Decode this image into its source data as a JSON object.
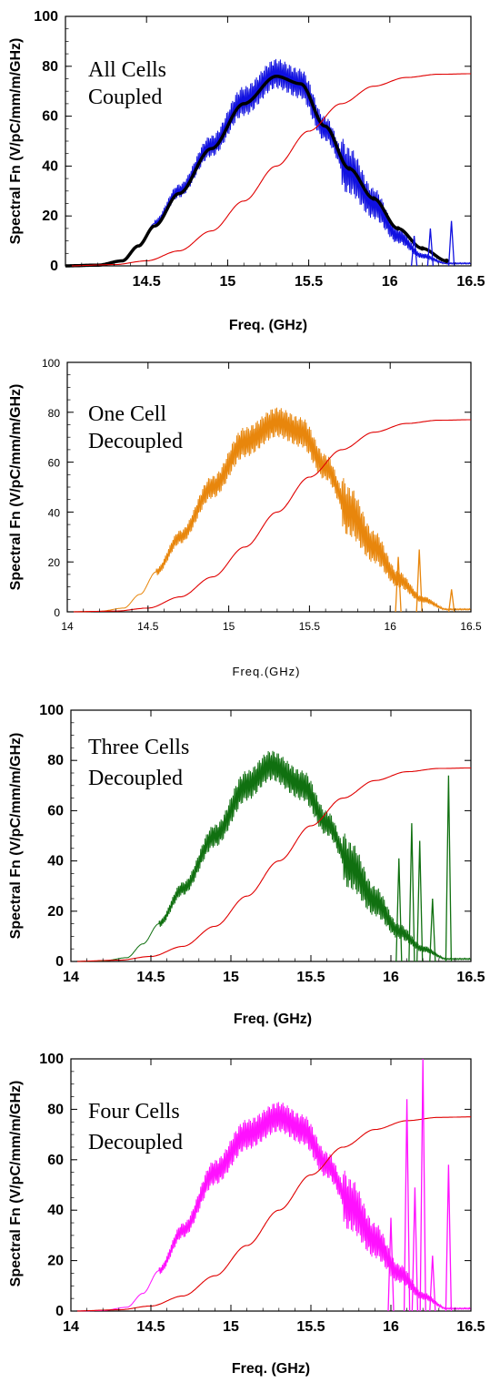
{
  "charts": [
    {
      "type": "line",
      "annotation": [
        "All Cells",
        "Coupled"
      ],
      "xlabel": "Freq. (GHz)",
      "ylabel": "Spectral Fn (V/pC/mm/m/GHz)",
      "xlim": [
        14.0,
        16.5
      ],
      "ylim": [
        0,
        100
      ],
      "xticks": [
        "14.5",
        "15",
        "15.5",
        "16",
        "16.5"
      ],
      "yticks": [
        "0",
        "20",
        "40",
        "60",
        "80",
        "100"
      ],
      "colors": {
        "spectrum": "#1010e0",
        "smooth": "#000000",
        "cumulative": "#e00000"
      },
      "grid": false,
      "series": [
        {
          "role": "spectrum",
          "x": [
            14.0,
            14.2,
            14.35,
            14.45,
            14.55,
            14.7,
            14.9,
            15.1,
            15.3,
            15.45,
            15.6,
            15.75,
            15.9,
            16.05,
            16.2,
            16.35
          ],
          "y": [
            0,
            0.3,
            2,
            8,
            17,
            30,
            48,
            66,
            77,
            73,
            55,
            38,
            25,
            12,
            4,
            1
          ]
        },
        {
          "role": "smooth",
          "x": [
            14.0,
            14.2,
            14.35,
            14.45,
            14.55,
            14.7,
            14.9,
            15.1,
            15.3,
            15.45,
            15.6,
            15.75,
            15.9,
            16.05,
            16.2,
            16.35
          ],
          "y": [
            0,
            0.3,
            2,
            8,
            16,
            29,
            47,
            65,
            76,
            73,
            56,
            39,
            27,
            15,
            7,
            2
          ]
        },
        {
          "role": "cumulative",
          "x": [
            14.0,
            14.3,
            14.5,
            14.7,
            14.9,
            15.1,
            15.3,
            15.5,
            15.7,
            15.9,
            16.1,
            16.3,
            16.5
          ],
          "y": [
            0,
            0.5,
            2,
            6,
            14,
            26,
            40,
            54,
            65,
            72,
            75.5,
            76.8,
            77
          ]
        }
      ],
      "spikes": [
        {
          "x": 16.38,
          "y": 18
        },
        {
          "x": 16.25,
          "y": 15
        },
        {
          "x": 16.15,
          "y": 12
        }
      ]
    },
    {
      "type": "line",
      "annotation": [
        "One Cell",
        "Decoupled"
      ],
      "xlabel": "Freq.(GHz)",
      "ylabel": "Spectral Fn (V/pC/mm/m/GHz)",
      "xlim": [
        14.0,
        16.5
      ],
      "ylim": [
        0,
        100
      ],
      "xticks": [
        "14",
        "14.5",
        "15",
        "15.5",
        "16",
        "16.5"
      ],
      "yticks": [
        "0",
        "20",
        "40",
        "60",
        "80",
        "100"
      ],
      "colors": {
        "spectrum": "#e8860c",
        "cumulative": "#e00000"
      },
      "grid": false,
      "series": [
        {
          "role": "spectrum",
          "x": [
            14.0,
            14.2,
            14.35,
            14.45,
            14.55,
            14.7,
            14.9,
            15.1,
            15.3,
            15.45,
            15.6,
            15.75,
            15.9,
            16.05,
            16.2,
            16.35
          ],
          "y": [
            0,
            0.2,
            1.5,
            7,
            16,
            30,
            50,
            68,
            76,
            72,
            58,
            40,
            26,
            13,
            5,
            1
          ]
        },
        {
          "role": "cumulative",
          "x": [
            14.0,
            14.3,
            14.5,
            14.7,
            14.9,
            15.1,
            15.3,
            15.5,
            15.7,
            15.9,
            16.1,
            16.3,
            16.5
          ],
          "y": [
            0,
            0.3,
            1.5,
            6,
            14,
            26,
            40,
            54,
            65,
            72,
            75.5,
            76.8,
            77
          ]
        }
      ],
      "spikes": [
        {
          "x": 16.38,
          "y": 9
        },
        {
          "x": 16.18,
          "y": 25
        },
        {
          "x": 16.05,
          "y": 22
        }
      ]
    },
    {
      "type": "line",
      "annotation": [
        "Three Cells",
        "Decoupled"
      ],
      "xlabel": "Freq. (GHz)",
      "ylabel": "Spectral Fn (V/pC/mm/m/GHz)",
      "xlim": [
        14.0,
        16.5
      ],
      "ylim": [
        0,
        100
      ],
      "xticks": [
        "14",
        "14.5",
        "15",
        "15.5",
        "16",
        "16.5"
      ],
      "yticks": [
        "0",
        "20",
        "40",
        "60",
        "80",
        "100"
      ],
      "colors": {
        "spectrum": "#107010",
        "cumulative": "#e00000"
      },
      "grid": false,
      "series": [
        {
          "role": "spectrum",
          "x": [
            14.0,
            14.2,
            14.35,
            14.45,
            14.55,
            14.7,
            14.9,
            15.1,
            15.25,
            15.45,
            15.6,
            15.75,
            15.9,
            16.05,
            16.2,
            16.35
          ],
          "y": [
            0,
            0.2,
            1.5,
            7,
            15,
            29,
            50,
            70,
            78,
            70,
            55,
            38,
            24,
            12,
            5,
            1
          ]
        },
        {
          "role": "cumulative",
          "x": [
            14.0,
            14.3,
            14.5,
            14.7,
            14.9,
            15.1,
            15.3,
            15.5,
            15.7,
            15.9,
            16.1,
            16.3,
            16.5
          ],
          "y": [
            0,
            0.5,
            2,
            6,
            14,
            26,
            40,
            54,
            65,
            72,
            75.5,
            76.8,
            77
          ]
        }
      ],
      "spikes": [
        {
          "x": 16.36,
          "y": 74
        },
        {
          "x": 16.26,
          "y": 25
        },
        {
          "x": 16.18,
          "y": 48
        },
        {
          "x": 16.13,
          "y": 55
        },
        {
          "x": 16.05,
          "y": 41
        }
      ]
    },
    {
      "type": "line",
      "annotation": [
        "Four Cells",
        "Decoupled"
      ],
      "xlabel": "Freq. (GHz)",
      "ylabel": "Spectral Fn (V/pC/mm/m/GHz)",
      "xlim": [
        14.0,
        16.5
      ],
      "ylim": [
        0,
        100
      ],
      "xticks": [
        "14",
        "14.5",
        "15",
        "15.5",
        "16",
        "16.5"
      ],
      "yticks": [
        "0",
        "20",
        "40",
        "60",
        "80",
        "100"
      ],
      "colors": {
        "spectrum": "#ff10ff",
        "cumulative": "#e00000"
      },
      "grid": false,
      "series": [
        {
          "role": "spectrum",
          "x": [
            14.0,
            14.2,
            14.35,
            14.45,
            14.55,
            14.7,
            14.9,
            15.1,
            15.3,
            15.45,
            15.6,
            15.75,
            15.9,
            16.05,
            16.2,
            16.35
          ],
          "y": [
            0,
            0.2,
            1.5,
            7,
            16,
            32,
            55,
            70,
            77,
            72,
            58,
            42,
            28,
            15,
            6,
            1
          ]
        },
        {
          "role": "cumulative",
          "x": [
            14.0,
            14.3,
            14.5,
            14.7,
            14.9,
            15.1,
            15.3,
            15.5,
            15.7,
            15.9,
            16.1,
            16.3,
            16.5
          ],
          "y": [
            0,
            0.5,
            2,
            6,
            14,
            26,
            40,
            54,
            65,
            72,
            75.5,
            76.8,
            77
          ]
        }
      ],
      "spikes": [
        {
          "x": 16.36,
          "y": 58
        },
        {
          "x": 16.26,
          "y": 22
        },
        {
          "x": 16.2,
          "y": 100
        },
        {
          "x": 16.15,
          "y": 49
        },
        {
          "x": 16.1,
          "y": 84
        },
        {
          "x": 16.0,
          "y": 37
        }
      ]
    }
  ]
}
